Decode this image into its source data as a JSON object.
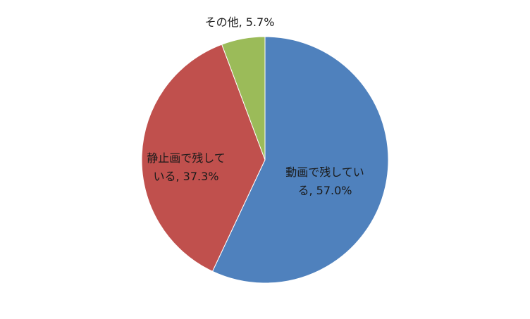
{
  "chart_data": {
    "type": "pie",
    "values": [
      57.0,
      37.3,
      5.7
    ],
    "value_labels": [
      "動画で残している, 57.0%",
      "静止画で残している, 37.3%",
      "その他, 5.7%"
    ],
    "colors": [
      "#4f81bd",
      "#c0504d",
      "#9bbb59"
    ]
  }
}
